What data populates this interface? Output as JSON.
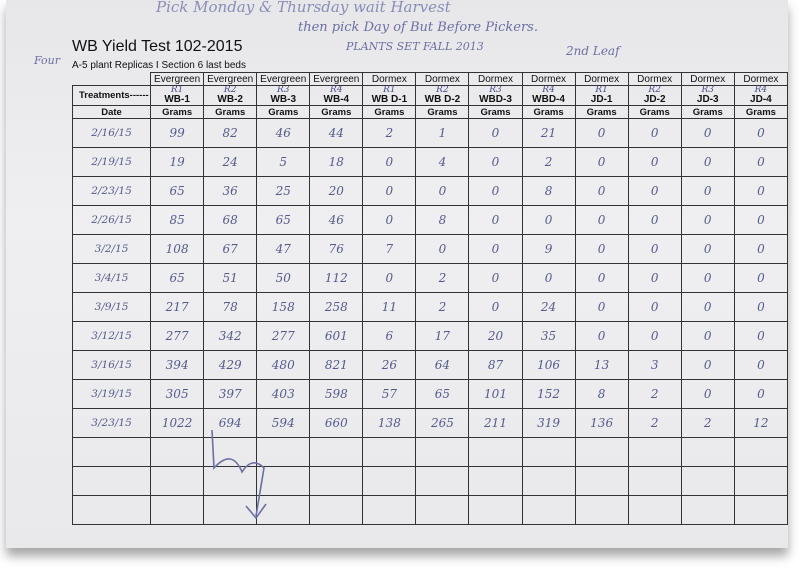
{
  "handwriting": {
    "top_note": "Pick Monday & Thursday  wait  Harvest",
    "second_note": "then pick Day of But Before Pickers.",
    "planting": "PLANTS SET FALL 2013",
    "leaf": "2nd Leaf",
    "left_note": "Four"
  },
  "sheet": {
    "title": "WB Yield Test 102-2015",
    "subtitle": "A-5 plant Replicas I Section 6 last  beds",
    "row_label_treatments": "Treatments------",
    "row_label_date": "Date"
  },
  "columns": [
    {
      "group": "Evergreen",
      "rep": "R1",
      "code": "WB-1",
      "unit": "Grams"
    },
    {
      "group": "Evergreen",
      "rep": "R2",
      "code": "WB-2",
      "unit": "Grams"
    },
    {
      "group": "Evergreen",
      "rep": "R3",
      "code": "WB-3",
      "unit": "Grams"
    },
    {
      "group": "Evergreen",
      "rep": "R4",
      "code": "WB-4",
      "unit": "Grams"
    },
    {
      "group": "Dormex",
      "rep": "R1",
      "code": "WB D-1",
      "unit": "Grams"
    },
    {
      "group": "Dormex",
      "rep": "R2",
      "code": "WB D-2",
      "unit": "Grams"
    },
    {
      "group": "Dormex",
      "rep": "R3",
      "code": "WBD-3",
      "unit": "Grams"
    },
    {
      "group": "Dormex",
      "rep": "R4",
      "code": "WBD-4",
      "unit": "Grams"
    },
    {
      "group": "Dormex",
      "rep": "R1",
      "code": "JD-1",
      "unit": "Grams"
    },
    {
      "group": "Dormex",
      "rep": "R2",
      "code": "JD-2",
      "unit": "Grams"
    },
    {
      "group": "Dormex",
      "rep": "R3",
      "code": "JD-3",
      "unit": "Grams"
    },
    {
      "group": "Dormex",
      "rep": "R4",
      "code": "JD-4",
      "unit": "Grams"
    }
  ],
  "rows": [
    {
      "date": "2/16/15",
      "values": [
        "99",
        "82",
        "46",
        "44",
        "2",
        "1",
        "0",
        "21",
        "0",
        "0",
        "0",
        "0"
      ]
    },
    {
      "date": "2/19/15",
      "values": [
        "19",
        "24",
        "5",
        "18",
        "0",
        "4",
        "0",
        "2",
        "0",
        "0",
        "0",
        "0"
      ]
    },
    {
      "date": "2/23/15",
      "values": [
        "65",
        "36",
        "25",
        "20",
        "0",
        "0",
        "0",
        "8",
        "0",
        "0",
        "0",
        "0"
      ]
    },
    {
      "date": "2/26/15",
      "values": [
        "85",
        "68",
        "65",
        "46",
        "0",
        "8",
        "0",
        "0",
        "0",
        "0",
        "0",
        "0"
      ]
    },
    {
      "date": "3/2/15",
      "values": [
        "108",
        "67",
        "47",
        "76",
        "7",
        "0",
        "0",
        "9",
        "0",
        "0",
        "0",
        "0"
      ]
    },
    {
      "date": "3/4/15",
      "values": [
        "65",
        "51",
        "50",
        "112",
        "0",
        "2",
        "0",
        "0",
        "0",
        "0",
        "0",
        "0"
      ]
    },
    {
      "date": "3/9/15",
      "values": [
        "217",
        "78",
        "158",
        "258",
        "11",
        "2",
        "0",
        "24",
        "0",
        "0",
        "0",
        "0"
      ]
    },
    {
      "date": "3/12/15",
      "values": [
        "277",
        "342",
        "277",
        "601",
        "6",
        "17",
        "20",
        "35",
        "0",
        "0",
        "0",
        "0"
      ]
    },
    {
      "date": "3/16/15",
      "values": [
        "394",
        "429",
        "480",
        "821",
        "26",
        "64",
        "87",
        "106",
        "13",
        "3",
        "0",
        "0"
      ]
    },
    {
      "date": "3/19/15",
      "values": [
        "305",
        "397",
        "403",
        "598",
        "57",
        "65",
        "101",
        "152",
        "8",
        "2",
        "0",
        "0"
      ]
    },
    {
      "date": "3/23/15",
      "values": [
        "1022",
        "694",
        "594",
        "660",
        "138",
        "265",
        "211",
        "319",
        "136",
        "2",
        "2",
        "12"
      ]
    }
  ],
  "blank_rows": 3
}
